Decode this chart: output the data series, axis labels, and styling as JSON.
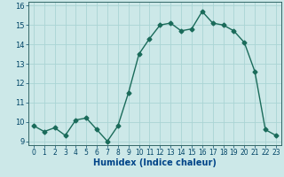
{
  "x": [
    0,
    1,
    2,
    3,
    4,
    5,
    6,
    7,
    8,
    9,
    10,
    11,
    12,
    13,
    14,
    15,
    16,
    17,
    18,
    19,
    20,
    21,
    22,
    23
  ],
  "y": [
    9.8,
    9.5,
    9.7,
    9.3,
    10.1,
    10.2,
    9.6,
    9.0,
    9.8,
    11.5,
    13.5,
    14.3,
    15.0,
    15.1,
    14.7,
    14.8,
    15.7,
    15.1,
    15.0,
    14.7,
    14.1,
    12.6,
    9.6,
    9.3
  ],
  "line_color": "#1a6b5a",
  "bg_color": "#cce8e8",
  "grid_color": "#aad4d4",
  "xlabel": "Humidex (Indice chaleur)",
  "xlim": [
    -0.5,
    23.5
  ],
  "ylim": [
    8.8,
    16.2
  ],
  "yticks": [
    9,
    10,
    11,
    12,
    13,
    14,
    15,
    16
  ],
  "xticks": [
    0,
    1,
    2,
    3,
    4,
    5,
    6,
    7,
    8,
    9,
    10,
    11,
    12,
    13,
    14,
    15,
    16,
    17,
    18,
    19,
    20,
    21,
    22,
    23
  ],
  "marker": "D",
  "markersize": 2.5,
  "linewidth": 1.0,
  "xlabel_color": "#004488",
  "tick_color": "#004466",
  "xlabel_fontsize": 7,
  "tick_fontsize": 5.5
}
